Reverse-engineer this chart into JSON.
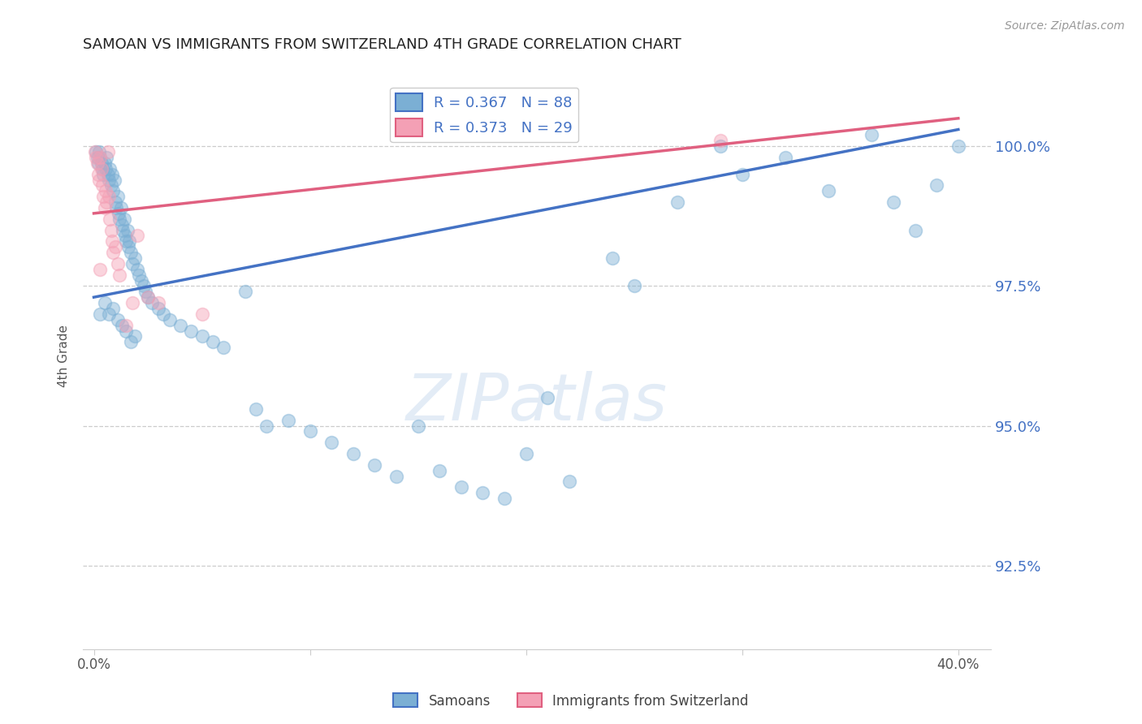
{
  "title": "SAMOAN VS IMMIGRANTS FROM SWITZERLAND 4TH GRADE CORRELATION CHART",
  "source": "Source: ZipAtlas.com",
  "ylabel": "4th Grade",
  "blue_color": "#7bafd4",
  "pink_color": "#f4a0b5",
  "blue_line_color": "#4472c4",
  "pink_line_color": "#e06080",
  "samoans_label": "Samoans",
  "swiss_label": "Immigrants from Switzerland",
  "ylim_low": 91.0,
  "ylim_high": 101.5,
  "xlim_low": -0.5,
  "xlim_high": 41.5,
  "yticks": [
    92.5,
    95.0,
    97.5,
    100.0
  ],
  "xtick_labels_x": [
    0,
    10,
    20,
    30,
    40
  ],
  "blue_scatter_x": [
    0.1,
    0.15,
    0.2,
    0.25,
    0.3,
    0.35,
    0.4,
    0.45,
    0.5,
    0.55,
    0.6,
    0.65,
    0.7,
    0.75,
    0.8,
    0.85,
    0.9,
    0.95,
    1.0,
    1.05,
    1.1,
    1.15,
    1.2,
    1.25,
    1.3,
    1.35,
    1.4,
    1.45,
    1.5,
    1.55,
    1.6,
    1.65,
    1.7,
    1.8,
    1.9,
    2.0,
    2.1,
    2.2,
    2.3,
    2.4,
    2.5,
    2.7,
    3.0,
    3.2,
    3.5,
    4.0,
    4.5,
    5.0,
    5.5,
    6.0,
    7.0,
    7.5,
    8.0,
    9.0,
    10.0,
    11.0,
    12.0,
    13.0,
    14.0,
    15.0,
    16.0,
    17.0,
    18.0,
    19.0,
    20.0,
    21.0,
    22.0,
    24.0,
    25.0,
    27.0,
    29.0,
    30.0,
    32.0,
    34.0,
    36.0,
    37.0,
    38.0,
    39.0,
    40.0,
    0.3,
    0.5,
    0.7,
    0.9,
    1.1,
    1.3,
    1.5,
    1.7,
    1.9
  ],
  "blue_scatter_y": [
    99.9,
    99.8,
    99.7,
    99.9,
    99.8,
    99.7,
    99.6,
    99.5,
    99.7,
    99.6,
    99.8,
    99.5,
    99.4,
    99.6,
    99.3,
    99.5,
    99.2,
    99.4,
    99.0,
    98.9,
    99.1,
    98.8,
    98.7,
    98.9,
    98.6,
    98.5,
    98.7,
    98.4,
    98.3,
    98.5,
    98.2,
    98.3,
    98.1,
    97.9,
    98.0,
    97.8,
    97.7,
    97.6,
    97.5,
    97.4,
    97.3,
    97.2,
    97.1,
    97.0,
    96.9,
    96.8,
    96.7,
    96.6,
    96.5,
    96.4,
    97.4,
    95.3,
    95.0,
    95.1,
    94.9,
    94.7,
    94.5,
    94.3,
    94.1,
    95.0,
    94.2,
    93.9,
    93.8,
    93.7,
    94.5,
    95.5,
    94.0,
    98.0,
    97.5,
    99.0,
    100.0,
    99.5,
    99.8,
    99.2,
    100.2,
    99.0,
    98.5,
    99.3,
    100.0,
    97.0,
    97.2,
    97.0,
    97.1,
    96.9,
    96.8,
    96.7,
    96.5,
    96.6
  ],
  "pink_scatter_x": [
    0.05,
    0.1,
    0.15,
    0.2,
    0.25,
    0.3,
    0.35,
    0.4,
    0.45,
    0.5,
    0.55,
    0.6,
    0.65,
    0.7,
    0.75,
    0.8,
    0.85,
    0.9,
    1.0,
    1.1,
    1.2,
    1.5,
    1.8,
    2.0,
    2.5,
    3.0,
    5.0,
    29.0,
    0.3
  ],
  "pink_scatter_y": [
    99.9,
    99.8,
    99.7,
    99.5,
    99.4,
    99.8,
    99.6,
    99.3,
    99.1,
    98.9,
    99.2,
    99.0,
    99.9,
    99.1,
    98.7,
    98.5,
    98.3,
    98.1,
    98.2,
    97.9,
    97.7,
    96.8,
    97.2,
    98.4,
    97.3,
    97.2,
    97.0,
    100.1,
    97.8
  ],
  "blue_line_x0": 0.0,
  "blue_line_x1": 40.0,
  "blue_line_y0": 97.3,
  "blue_line_y1": 100.3,
  "pink_line_x0": 0.0,
  "pink_line_x1": 40.0,
  "pink_line_y0": 98.8,
  "pink_line_y1": 100.5
}
